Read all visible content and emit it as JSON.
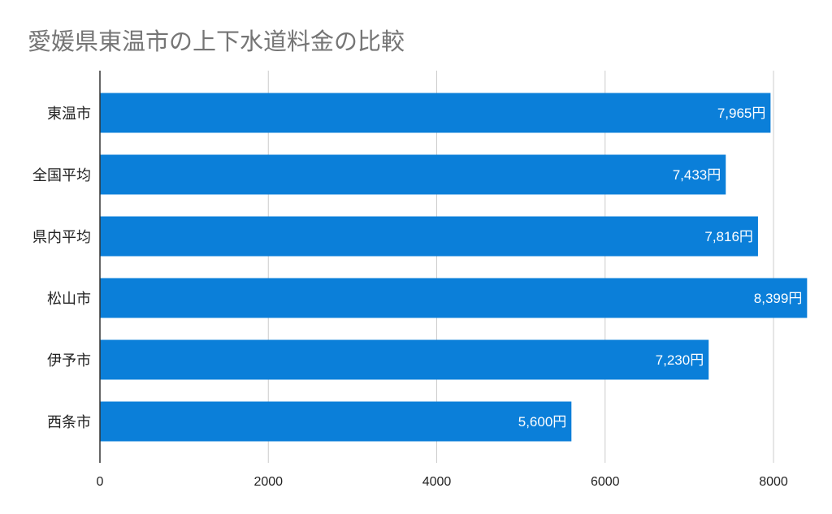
{
  "chart_data": {
    "type": "bar",
    "orientation": "horizontal",
    "title": "愛媛県東温市の上下水道料金の比較",
    "categories": [
      "東温市",
      "全国平均",
      "県内平均",
      "松山市",
      "伊予市",
      "西条市"
    ],
    "values": [
      7965,
      7433,
      7816,
      8399,
      7230,
      5600
    ],
    "data_labels": [
      "7,965円",
      "7,433円",
      "7,816円",
      "8,399円",
      "7,230円",
      "5,600円"
    ],
    "x_ticks": [
      "0",
      "2000",
      "4000",
      "6000",
      "8000"
    ],
    "xlim": [
      0,
      8400
    ],
    "grid": true,
    "bar_color": "#0b7fd9",
    "title_color": "#757575"
  }
}
